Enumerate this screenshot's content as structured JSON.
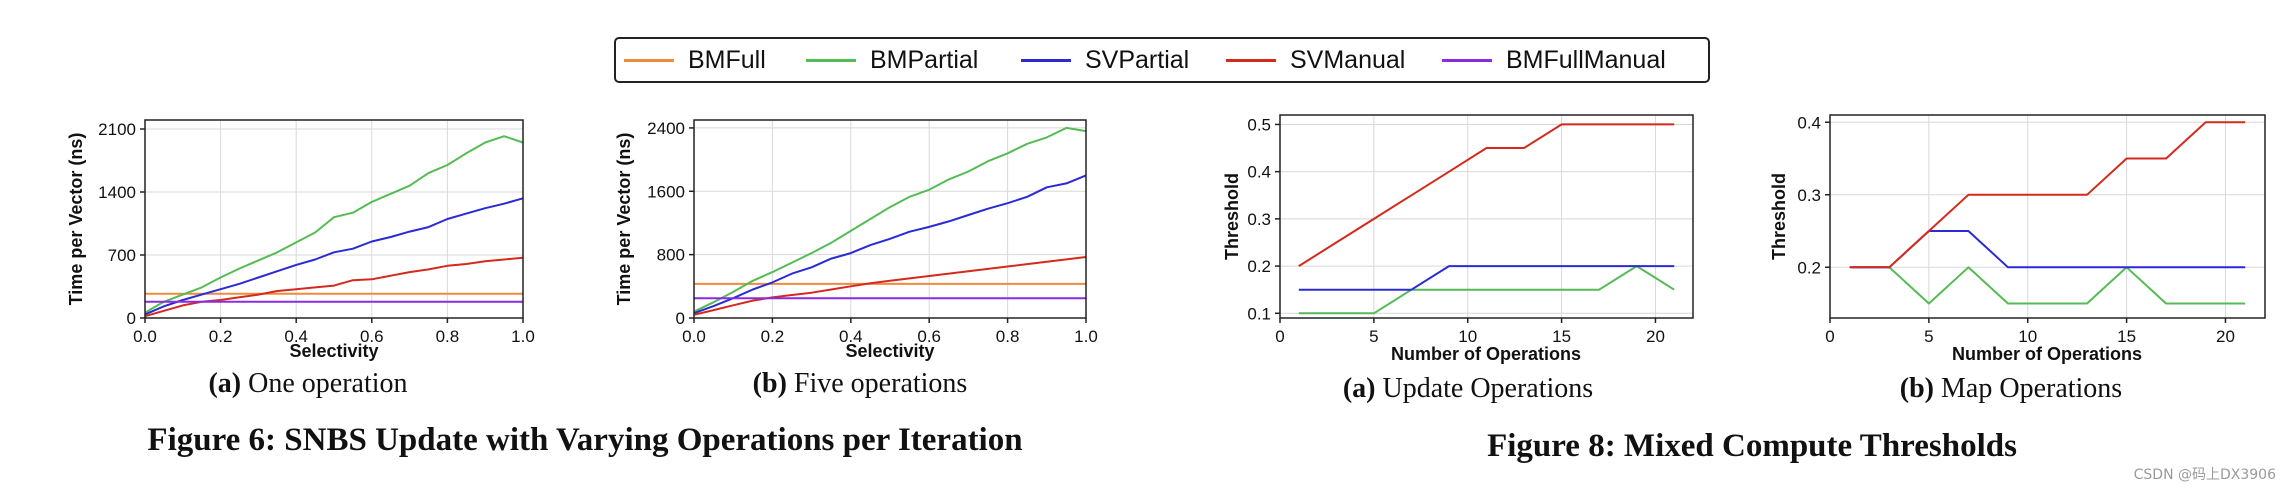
{
  "legend": [
    {
      "label": "BMFull",
      "color": "#f08a3c"
    },
    {
      "label": "BMPartial",
      "color": "#55bb55"
    },
    {
      "label": "SVPartial",
      "color": "#2a2ad6"
    },
    {
      "label": "SVManual",
      "color": "#d42a1e"
    },
    {
      "label": "BMFullManual",
      "color": "#8a2be2"
    }
  ],
  "subcaptions": [
    {
      "tag": "(a)",
      "text": " One operation"
    },
    {
      "tag": "(b)",
      "text": " Five operations"
    },
    {
      "tag": "(a)",
      "text": " Update Operations"
    },
    {
      "tag": "(b)",
      "text": " Map Operations"
    }
  ],
  "figure_captions": {
    "fig6": "Figure 6: SNBS Update with Varying Operations per Iteration",
    "fig8": "Figure 8: Mixed Compute Thresholds"
  },
  "watermark": "CSDN @码上DX3906",
  "chart_data": [
    {
      "type": "line",
      "xlabel": "Selectivity",
      "ylabel": "Time per Vector (ns)",
      "xlim": [
        0,
        1
      ],
      "ylim": [
        0,
        2200
      ],
      "xticks": [
        0.0,
        0.2,
        0.4,
        0.6,
        0.8,
        1.0
      ],
      "xtick_labels": [
        "0.0",
        "0.2",
        "0.4",
        "0.6",
        "0.8",
        "1.0"
      ],
      "yticks": [
        0,
        700,
        1400,
        2100
      ],
      "ytick_labels": [
        "0",
        "700",
        "1400",
        "2100"
      ],
      "grid": true,
      "x": [
        0.0,
        0.05,
        0.1,
        0.15,
        0.2,
        0.25,
        0.3,
        0.35,
        0.4,
        0.45,
        0.5,
        0.55,
        0.6,
        0.65,
        0.7,
        0.75,
        0.8,
        0.85,
        0.9,
        0.95,
        1.0
      ],
      "series": [
        {
          "name": "BMFull",
          "color": "#f08a3c",
          "values": [
            270,
            270,
            270,
            270,
            270,
            270,
            270,
            270,
            270,
            270,
            270,
            270,
            270,
            270,
            270,
            270,
            270,
            270,
            270,
            270,
            270
          ]
        },
        {
          "name": "BMPartial",
          "color": "#55bb55",
          "values": [
            60,
            180,
            260,
            340,
            450,
            550,
            640,
            730,
            840,
            950,
            1120,
            1170,
            1290,
            1380,
            1470,
            1610,
            1700,
            1830,
            1950,
            2020,
            1950
          ]
        },
        {
          "name": "SVPartial",
          "color": "#2a2ad6",
          "values": [
            40,
            130,
            200,
            260,
            320,
            380,
            450,
            520,
            590,
            650,
            730,
            770,
            850,
            900,
            960,
            1010,
            1100,
            1160,
            1220,
            1270,
            1330
          ]
        },
        {
          "name": "SVManual",
          "color": "#d42a1e",
          "values": [
            20,
            80,
            140,
            180,
            200,
            230,
            260,
            300,
            320,
            340,
            360,
            420,
            430,
            470,
            510,
            540,
            580,
            600,
            630,
            650,
            670
          ]
        },
        {
          "name": "BMFullManual",
          "color": "#8a2be2",
          "values": [
            180,
            180,
            180,
            180,
            180,
            180,
            180,
            180,
            180,
            180,
            180,
            180,
            180,
            180,
            180,
            180,
            180,
            180,
            180,
            180,
            180
          ]
        }
      ]
    },
    {
      "type": "line",
      "xlabel": "Selectivity",
      "ylabel": "Time per Vector (ns)",
      "xlim": [
        0,
        1
      ],
      "ylim": [
        0,
        2500
      ],
      "xticks": [
        0.0,
        0.2,
        0.4,
        0.6,
        0.8,
        1.0
      ],
      "xtick_labels": [
        "0.0",
        "0.2",
        "0.4",
        "0.6",
        "0.8",
        "1.0"
      ],
      "yticks": [
        0,
        800,
        1600,
        2400
      ],
      "ytick_labels": [
        "0",
        "800",
        "1600",
        "2400"
      ],
      "grid": true,
      "x": [
        0.0,
        0.05,
        0.1,
        0.15,
        0.2,
        0.25,
        0.3,
        0.35,
        0.4,
        0.45,
        0.5,
        0.55,
        0.6,
        0.65,
        0.7,
        0.75,
        0.8,
        0.85,
        0.9,
        0.95,
        1.0
      ],
      "series": [
        {
          "name": "BMFull",
          "color": "#f08a3c",
          "values": [
            430,
            430,
            430,
            430,
            430,
            430,
            430,
            430,
            430,
            430,
            430,
            430,
            430,
            430,
            430,
            430,
            430,
            430,
            430,
            430,
            430
          ]
        },
        {
          "name": "BMPartial",
          "color": "#55bb55",
          "values": [
            80,
            200,
            330,
            470,
            580,
            700,
            820,
            950,
            1100,
            1250,
            1400,
            1530,
            1620,
            1750,
            1850,
            1980,
            2080,
            2200,
            2280,
            2400,
            2360
          ]
        },
        {
          "name": "SVPartial",
          "color": "#2a2ad6",
          "values": [
            60,
            150,
            250,
            360,
            450,
            560,
            640,
            750,
            820,
            920,
            1000,
            1090,
            1150,
            1220,
            1300,
            1380,
            1450,
            1530,
            1650,
            1700,
            1800
          ]
        },
        {
          "name": "SVManual",
          "color": "#d42a1e",
          "values": [
            40,
            100,
            160,
            220,
            260,
            290,
            320,
            360,
            400,
            440,
            470,
            500,
            530,
            560,
            590,
            620,
            650,
            680,
            710,
            740,
            770
          ]
        },
        {
          "name": "BMFullManual",
          "color": "#8a2be2",
          "values": [
            250,
            250,
            250,
            250,
            250,
            250,
            250,
            250,
            250,
            250,
            250,
            250,
            250,
            250,
            250,
            250,
            250,
            250,
            250,
            250,
            250
          ]
        }
      ]
    },
    {
      "type": "line",
      "xlabel": "Number of Operations",
      "ylabel": "Threshold",
      "xlim": [
        0,
        22
      ],
      "ylim": [
        0.09,
        0.52
      ],
      "xticks": [
        0,
        5,
        10,
        15,
        20
      ],
      "xtick_labels": [
        "0",
        "5",
        "10",
        "15",
        "20"
      ],
      "yticks": [
        0.1,
        0.2,
        0.3,
        0.4,
        0.5
      ],
      "ytick_labels": [
        "0.1",
        "0.2",
        "0.3",
        "0.4",
        "0.5"
      ],
      "grid": true,
      "x": [
        1,
        3,
        5,
        7,
        9,
        11,
        13,
        15,
        17,
        19,
        21
      ],
      "series": [
        {
          "name": "BMPartial",
          "color": "#55bb55",
          "values": [
            0.1,
            0.1,
            0.1,
            0.15,
            0.15,
            0.15,
            0.15,
            0.15,
            0.15,
            0.2,
            0.15
          ]
        },
        {
          "name": "SVPartial",
          "color": "#2a2ad6",
          "values": [
            0.15,
            0.15,
            0.15,
            0.15,
            0.2,
            0.2,
            0.2,
            0.2,
            0.2,
            0.2,
            0.2
          ]
        },
        {
          "name": "SVManual",
          "color": "#d42a1e",
          "values": [
            0.2,
            0.25,
            0.3,
            0.35,
            0.4,
            0.45,
            0.45,
            0.5,
            0.5,
            0.5,
            0.5
          ]
        }
      ]
    },
    {
      "type": "line",
      "xlabel": "Number of Operations",
      "ylabel": "Threshold",
      "xlim": [
        0,
        22
      ],
      "ylim": [
        0.13,
        0.41
      ],
      "xticks": [
        0,
        5,
        10,
        15,
        20
      ],
      "xtick_labels": [
        "0",
        "5",
        "10",
        "15",
        "20"
      ],
      "yticks": [
        0.2,
        0.3,
        0.4
      ],
      "ytick_labels": [
        "0.2",
        "0.3",
        "0.4"
      ],
      "grid": true,
      "x": [
        1,
        3,
        5,
        7,
        9,
        11,
        13,
        15,
        17,
        19,
        21
      ],
      "series": [
        {
          "name": "BMPartial",
          "color": "#55bb55",
          "values": [
            0.2,
            0.2,
            0.15,
            0.2,
            0.15,
            0.15,
            0.15,
            0.2,
            0.15,
            0.15,
            0.15
          ]
        },
        {
          "name": "SVPartial",
          "color": "#2a2ad6",
          "values": [
            0.2,
            0.2,
            0.25,
            0.25,
            0.2,
            0.2,
            0.2,
            0.2,
            0.2,
            0.2,
            0.2
          ]
        },
        {
          "name": "SVManual",
          "color": "#d42a1e",
          "values": [
            0.2,
            0.2,
            0.25,
            0.3,
            0.3,
            0.3,
            0.3,
            0.35,
            0.35,
            0.4,
            0.4
          ]
        }
      ]
    }
  ]
}
